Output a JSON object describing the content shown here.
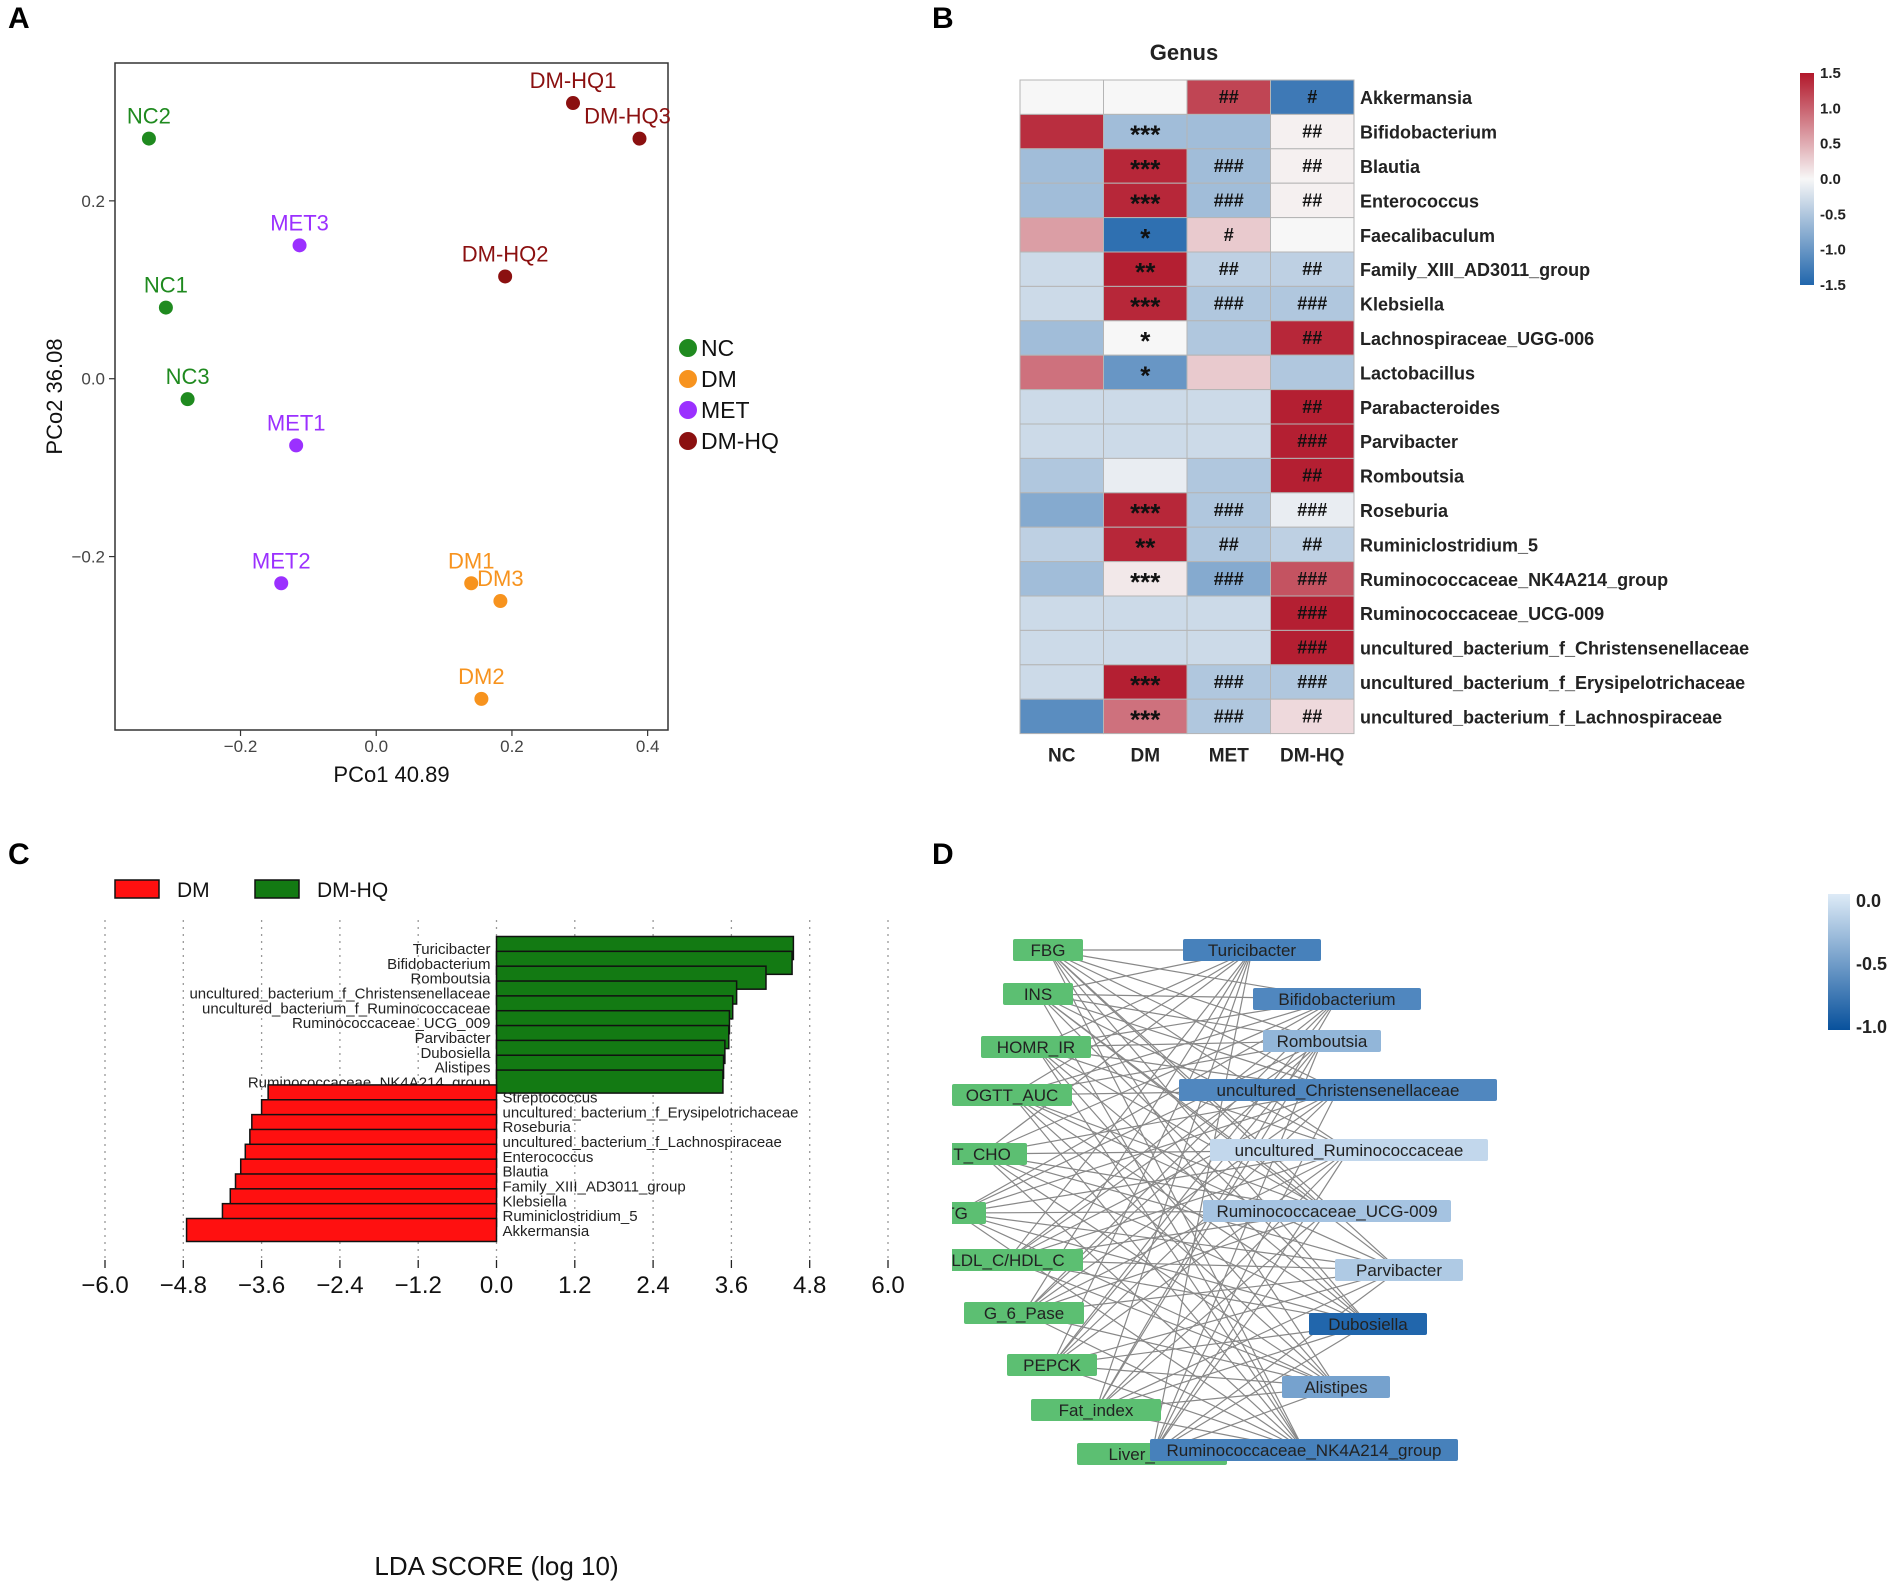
{
  "panel_labels": {
    "a": "A",
    "b": "B",
    "c": "C",
    "d": "D"
  },
  "colors": {
    "NC": "#1f8a1f",
    "DM": "#f7931e",
    "MET": "#9b30ff",
    "DM-HQ": "#8b1010",
    "lda_dm": "#ff1010",
    "lda_dmhq": "#137a13",
    "heat_low": "#2166ac",
    "heat_mid": "#f7f7f7",
    "heat_high": "#b2182b",
    "net_node_green": "#5cbf72",
    "net_edge": "#888888"
  },
  "chart_data": [
    {
      "id": "A",
      "type": "scatter",
      "xlabel": "PCo1 40.89",
      "ylabel": "PCo2 36.08",
      "xlim": [
        -0.385,
        0.43
      ],
      "ylim": [
        -0.395,
        0.355
      ],
      "xticks": [
        -0.2,
        0.0,
        0.2,
        0.4
      ],
      "xtick_labels": [
        "−0.2",
        "0.0",
        "0.2",
        "0.4"
      ],
      "yticks": [
        -0.2,
        0.0,
        0.2
      ],
      "ytick_labels": [
        "−0.2",
        "0.0",
        "0.2"
      ],
      "legend": {
        "position": "right",
        "entries": [
          "NC",
          "DM",
          "MET",
          "DM-HQ"
        ]
      },
      "points": [
        {
          "label": "NC2",
          "group": "NC",
          "x": -0.335,
          "y": 0.27
        },
        {
          "label": "NC1",
          "group": "NC",
          "x": -0.31,
          "y": 0.08
        },
        {
          "label": "NC3",
          "group": "NC",
          "x": -0.278,
          "y": -0.023
        },
        {
          "label": "MET3",
          "group": "MET",
          "x": -0.113,
          "y": 0.15
        },
        {
          "label": "MET1",
          "group": "MET",
          "x": -0.118,
          "y": -0.075
        },
        {
          "label": "MET2",
          "group": "MET",
          "x": -0.14,
          "y": -0.23
        },
        {
          "label": "DM-HQ1",
          "group": "DM-HQ",
          "x": 0.29,
          "y": 0.31
        },
        {
          "label": "DM-HQ3",
          "group": "DM-HQ",
          "x": 0.388,
          "y": 0.27
        },
        {
          "label": "DM-HQ2",
          "group": "DM-HQ",
          "x": 0.19,
          "y": 0.115
        },
        {
          "label": "DM1",
          "group": "DM",
          "x": 0.14,
          "y": -0.23
        },
        {
          "label": "DM3",
          "group": "DM",
          "x": 0.183,
          "y": -0.25
        },
        {
          "label": "DM2",
          "group": "DM",
          "x": 0.155,
          "y": -0.36
        }
      ]
    },
    {
      "id": "B",
      "type": "heatmap",
      "title": "Genus",
      "columns": [
        "NC",
        "DM",
        "MET",
        "DM-HQ"
      ],
      "rows": [
        "Akkermansia",
        "Bifidobacterium",
        "Blautia",
        "Enterococcus",
        "Faecalibaculum",
        "Family_XIII_AD3011_group",
        "Klebsiella",
        "Lachnospiraceae_UGG-006",
        "Lactobacillus",
        "Parabacteroides",
        "Parvibacter",
        "Romboutsia",
        "Roseburia",
        "Ruminiclostridium_5",
        "Ruminococcaceae_NK4A214_group",
        "Ruminococcaceae_UCG-009",
        "uncultured_bacterium_f_Christensenellaceae",
        "uncultured_bacterium_f_Erysipelotrichaceae",
        "uncultured_bacterium_f_Lachnospiraceae"
      ],
      "values": [
        [
          0.0,
          0.0,
          1.2,
          -1.3
        ],
        [
          1.35,
          -0.6,
          -0.6,
          0.05
        ],
        [
          -0.6,
          1.4,
          -0.6,
          0.05
        ],
        [
          -0.6,
          1.4,
          -0.6,
          0.05
        ],
        [
          0.6,
          -1.4,
          0.3,
          0.0
        ],
        [
          -0.3,
          1.45,
          -0.4,
          -0.4
        ],
        [
          -0.3,
          1.4,
          -0.5,
          -0.5
        ],
        [
          -0.6,
          0.0,
          -0.5,
          1.4
        ],
        [
          0.9,
          -1.0,
          0.3,
          -0.5
        ],
        [
          -0.3,
          -0.3,
          -0.3,
          1.45
        ],
        [
          -0.3,
          -0.3,
          -0.3,
          1.45
        ],
        [
          -0.5,
          -0.1,
          -0.5,
          1.45
        ],
        [
          -0.8,
          1.4,
          -0.5,
          -0.1
        ],
        [
          -0.4,
          1.4,
          -0.5,
          -0.4
        ],
        [
          -0.6,
          0.1,
          -0.8,
          1.1
        ],
        [
          -0.3,
          -0.3,
          -0.3,
          1.45
        ],
        [
          -0.3,
          -0.3,
          -0.3,
          1.45
        ],
        [
          -0.3,
          1.45,
          -0.5,
          -0.5
        ],
        [
          -1.1,
          0.9,
          -0.5,
          0.2
        ]
      ],
      "annotations": [
        [
          "",
          "",
          "##",
          "#"
        ],
        [
          "",
          "***",
          "",
          "##"
        ],
        [
          "",
          "***",
          "###",
          "##"
        ],
        [
          "",
          "***",
          "###",
          "##"
        ],
        [
          "",
          "*",
          "#",
          ""
        ],
        [
          "",
          "**",
          "##",
          "##"
        ],
        [
          "",
          "***",
          "###",
          "###"
        ],
        [
          "",
          "*",
          "",
          "##"
        ],
        [
          "",
          "*",
          "",
          ""
        ],
        [
          "",
          "",
          "",
          "##"
        ],
        [
          "",
          "",
          "",
          "###"
        ],
        [
          "",
          "",
          "",
          "##"
        ],
        [
          "",
          "***",
          "###",
          "###"
        ],
        [
          "",
          "**",
          "##",
          "##"
        ],
        [
          "",
          "***",
          "###",
          "###"
        ],
        [
          "",
          "",
          "",
          "###"
        ],
        [
          "",
          "",
          "",
          "###"
        ],
        [
          "",
          "***",
          "###",
          "###"
        ],
        [
          "",
          "***",
          "###",
          "##"
        ]
      ],
      "colorbar": {
        "ticks": [
          1.5,
          1.0,
          0.5,
          0.0,
          -0.5,
          -1.0,
          -1.5
        ],
        "tick_labels": [
          "1.5",
          "1.0",
          "0.5",
          "0.0",
          "-0.5",
          "-1.0",
          "-1.5"
        ]
      }
    },
    {
      "id": "C",
      "type": "bar",
      "orientation": "horizontal",
      "xlabel": "LDA SCORE (log 10)",
      "xlim": [
        -6.0,
        6.0
      ],
      "xticks": [
        -6.0,
        -4.8,
        -3.6,
        -2.4,
        -1.2,
        0.0,
        1.2,
        2.4,
        3.6,
        4.8,
        6.0
      ],
      "xtick_labels": [
        "−6.0",
        "−4.8",
        "−3.6",
        "−2.4",
        "−1.2",
        "0.0",
        "1.2",
        "2.4",
        "3.6",
        "4.8",
        "6.0"
      ],
      "legend": {
        "position": "top-left",
        "entries": [
          "DM",
          "DM-HQ"
        ]
      },
      "categories": [
        "Turicibacter",
        "Bifidobacterium",
        "Romboutsia",
        "uncultured_bacterium_f_Christensenellaceae",
        "uncultured_bacterium_f_Ruminococcaceae",
        "Ruminococcaceae_UCG_009",
        "Parvibacter",
        "Dubosiella",
        "Alistipes",
        "Ruminococcaceae_NK4A214_group",
        "Streptococcus",
        "uncultured_bacterium_f_Erysipelotrichaceae",
        "Roseburia",
        "uncultured_bacterium_f_Lachnospiraceae",
        "Enterococcus",
        "Blautia",
        "Family_XIII_AD3011_group",
        "Klebsiella",
        "Ruminiclostridium_5",
        "Akkermansia"
      ],
      "groups": [
        "DM-HQ",
        "DM-HQ",
        "DM-HQ",
        "DM-HQ",
        "DM-HQ",
        "DM-HQ",
        "DM-HQ",
        "DM-HQ",
        "DM-HQ",
        "DM-HQ",
        "DM",
        "DM",
        "DM",
        "DM",
        "DM",
        "DM",
        "DM",
        "DM",
        "DM",
        "DM"
      ],
      "values": [
        4.55,
        4.53,
        4.13,
        3.68,
        3.62,
        3.57,
        3.56,
        3.5,
        3.48,
        3.47,
        -3.5,
        -3.6,
        -3.75,
        -3.78,
        -3.85,
        -3.92,
        -4.0,
        -4.08,
        -4.2,
        -4.75
      ]
    },
    {
      "id": "D",
      "type": "network",
      "left_nodes": [
        "FBG",
        "INS",
        "HOMR_IR",
        "OGTT_AUC",
        "T_CHO",
        "TG",
        "LDL_C/HDL_C",
        "G_6_Pase",
        "PEPCK",
        "Fat_index",
        "Liver_index"
      ],
      "right_nodes": [
        "Turicibacter",
        "Bifidobacterium",
        "Romboutsia",
        "uncultured_Christensenellaceae",
        "uncultured_Ruminococcaceae",
        "Ruminococcaceae_UCG-009",
        "Parvibacter",
        "Dubosiella",
        "Alistipes",
        "Ruminococcaceae_NK4A214_group"
      ],
      "right_values": [
        -0.8,
        -0.75,
        -0.4,
        -0.75,
        -0.15,
        -0.3,
        -0.25,
        -1.0,
        -0.55,
        -0.8
      ],
      "colorbar": {
        "ticks": [
          0.0,
          -0.5,
          -1.0
        ],
        "tick_labels": [
          "0.0",
          "-0.5",
          "-1.0"
        ]
      }
    }
  ]
}
